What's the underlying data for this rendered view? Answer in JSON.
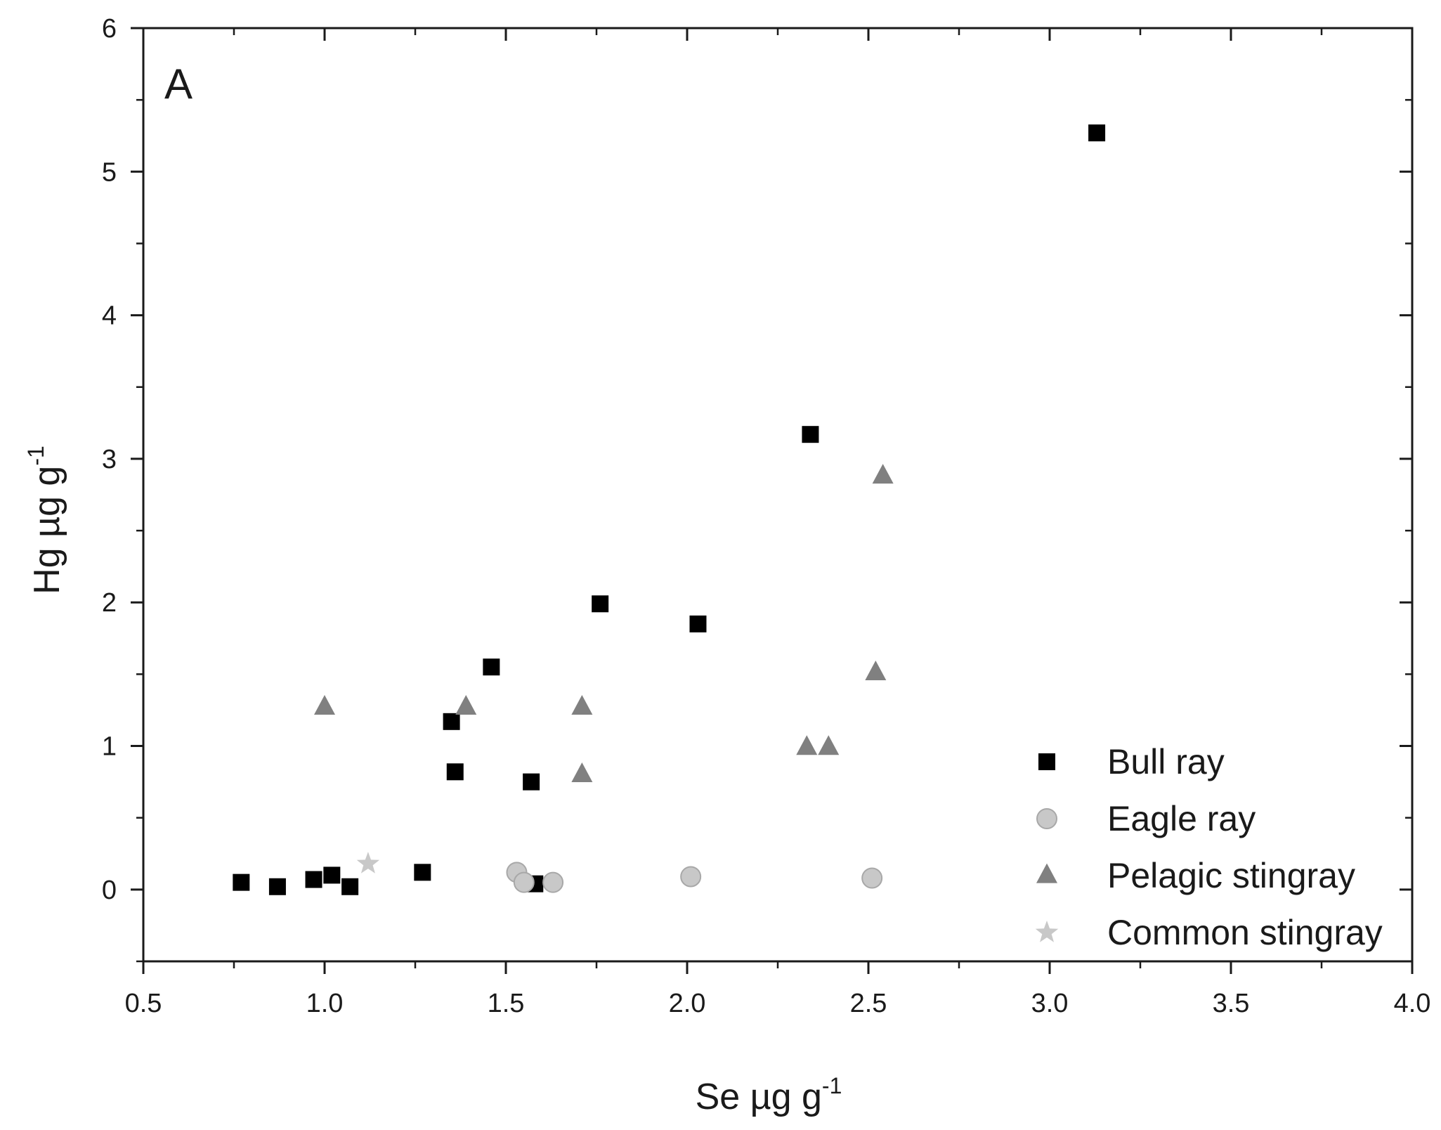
{
  "chart_data": {
    "type": "scatter",
    "panel_label": "A",
    "title": "",
    "xlabel": {
      "base": "Se  µg g",
      "sup": "-1"
    },
    "ylabel": {
      "base": "Hg µg g",
      "sup": "-1"
    },
    "xlim": [
      0.5,
      4.0
    ],
    "ylim": [
      -0.5,
      6.0
    ],
    "x_ticks": [
      0.5,
      1.0,
      1.5,
      2.0,
      2.5,
      3.0,
      3.5,
      4.0
    ],
    "x_tick_labels": [
      "0.5",
      "1.0",
      "1.5",
      "2.0",
      "2.5",
      "3.0",
      "3.5",
      "4.0"
    ],
    "y_ticks": [
      0,
      1,
      2,
      3,
      4,
      5,
      6
    ],
    "y_tick_labels": [
      "0",
      "1",
      "2",
      "3",
      "4",
      "5",
      "6"
    ],
    "grid": false,
    "legend_position": "bottom-right",
    "series": [
      {
        "name": "Bull ray",
        "marker": "square",
        "color": "#000000",
        "points": [
          [
            0.77,
            0.05
          ],
          [
            0.87,
            0.02
          ],
          [
            0.97,
            0.07
          ],
          [
            1.02,
            0.1
          ],
          [
            1.07,
            0.02
          ],
          [
            1.27,
            0.12
          ],
          [
            1.35,
            1.17
          ],
          [
            1.36,
            0.82
          ],
          [
            1.46,
            1.55
          ],
          [
            1.57,
            0.75
          ],
          [
            1.58,
            0.04
          ],
          [
            1.76,
            1.99
          ],
          [
            2.03,
            1.85
          ],
          [
            2.34,
            3.17
          ],
          [
            3.13,
            5.27
          ]
        ]
      },
      {
        "name": "Eagle ray",
        "marker": "circle",
        "color": "#c8c8c8",
        "points": [
          [
            1.53,
            0.12
          ],
          [
            1.55,
            0.05
          ],
          [
            1.63,
            0.05
          ],
          [
            2.01,
            0.09
          ],
          [
            2.51,
            0.08
          ]
        ]
      },
      {
        "name": "Pelagic stingray",
        "marker": "triangle",
        "color": "#808080",
        "points": [
          [
            1.0,
            1.27
          ],
          [
            1.39,
            1.27
          ],
          [
            1.71,
            1.27
          ],
          [
            1.71,
            0.8
          ],
          [
            2.33,
            0.99
          ],
          [
            2.39,
            0.99
          ],
          [
            2.52,
            1.51
          ],
          [
            2.54,
            2.88
          ]
        ]
      },
      {
        "name": "Common stingray",
        "marker": "star",
        "color": "#c8c8c8",
        "points": [
          [
            1.12,
            0.18
          ]
        ]
      }
    ]
  }
}
